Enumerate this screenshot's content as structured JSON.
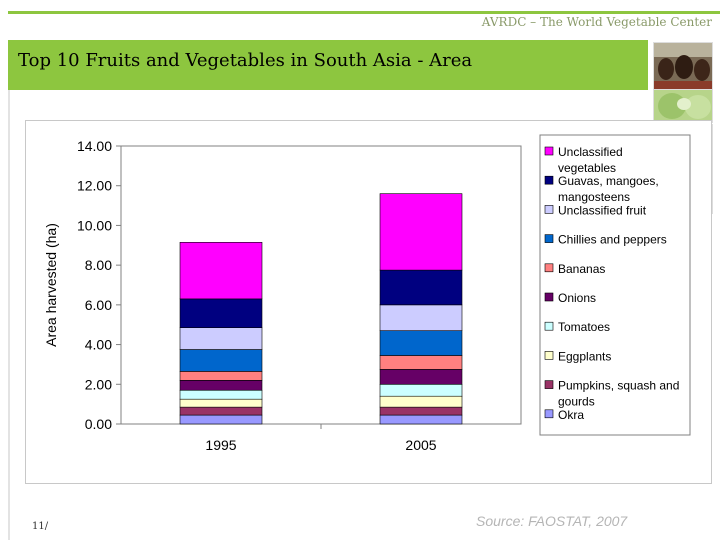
{
  "header": {
    "org_name": "AVRDC – The World Vegetable Center",
    "title": "Top 10 Fruits and Vegetables in South Asia - Area",
    "accent_color": "#8dc63f"
  },
  "footer": {
    "page_number": "11/",
    "source": "Source: FAOSTAT, 2007"
  },
  "photos": [
    "children-faces-photo",
    "cabbage-photo",
    "woman-photo",
    "red-produce-photo"
  ],
  "chart_data": {
    "type": "bar",
    "stacked": true,
    "categories": [
      "1995",
      "2005"
    ],
    "ylabel": "Area harvested (ha)",
    "xlabel": "",
    "ylim": [
      0,
      14
    ],
    "yticks": [
      "0.00",
      "2.00",
      "4.00",
      "6.00",
      "8.00",
      "10.00",
      "12.00",
      "14.00"
    ],
    "grid": false,
    "legend_position": "right",
    "series": [
      {
        "name": "Okra",
        "color": "#9999ff",
        "values": [
          0.45,
          0.45
        ]
      },
      {
        "name": "Pumpkins, squash and gourds",
        "color": "#993366",
        "values": [
          0.4,
          0.4
        ]
      },
      {
        "name": "Eggplants",
        "color": "#ffffcc",
        "values": [
          0.4,
          0.55
        ]
      },
      {
        "name": "Tomatoes",
        "color": "#ccffff",
        "values": [
          0.45,
          0.6
        ]
      },
      {
        "name": "Onions",
        "color": "#660066",
        "values": [
          0.5,
          0.75
        ]
      },
      {
        "name": "Bananas",
        "color": "#ff8080",
        "values": [
          0.45,
          0.7
        ]
      },
      {
        "name": "Chillies and peppers",
        "color": "#0066cc",
        "values": [
          1.1,
          1.25
        ]
      },
      {
        "name": "Unclassified fruit",
        "color": "#ccccff",
        "values": [
          1.1,
          1.3
        ]
      },
      {
        "name": "Guavas, mangoes, mangosteens",
        "color": "#000080",
        "values": [
          1.45,
          1.75
        ]
      },
      {
        "name": "Unclassified vegetables",
        "color": "#ff00ff",
        "values": [
          2.85,
          3.85
        ]
      }
    ]
  }
}
